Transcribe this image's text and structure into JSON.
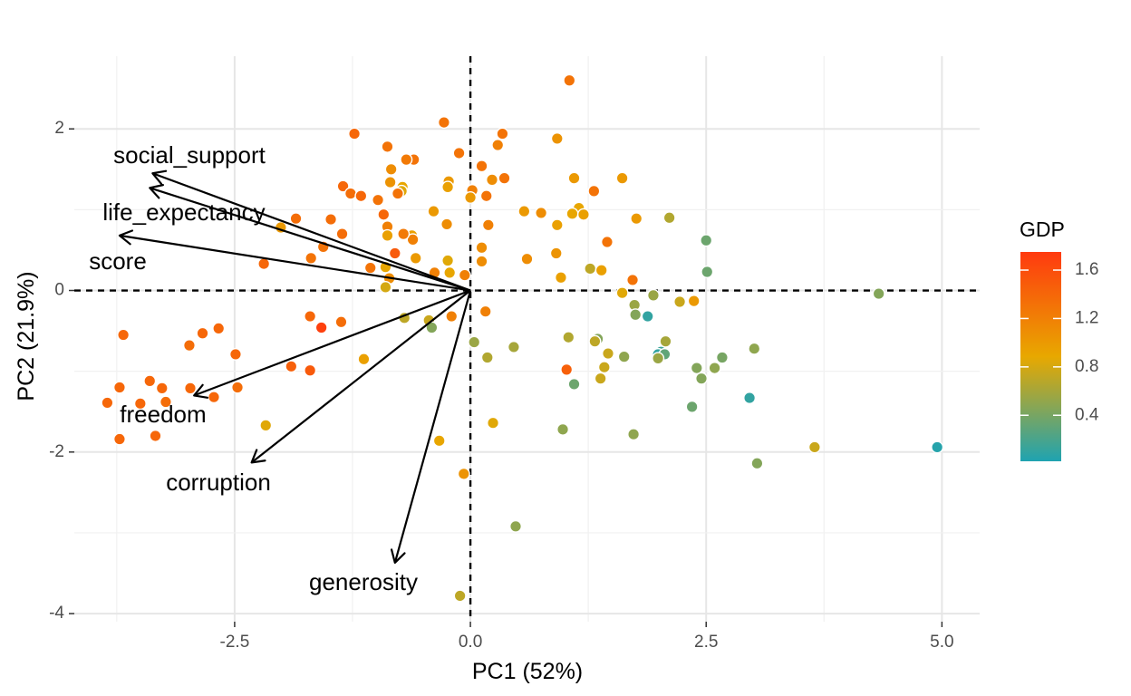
{
  "chart_data": {
    "type": "scatter",
    "subtype": "pca-biplot",
    "title": "",
    "xlabel": "PC1 (52%)",
    "ylabel": "PC2 (21.9%)",
    "xlim": [
      -4.2,
      5.4
    ],
    "ylim": [
      -4.1,
      2.9
    ],
    "x_ticks": [
      -2.5,
      0.0,
      2.5,
      5.0
    ],
    "x_tick_labels": [
      "-2.5",
      "0.0",
      "2.5",
      "5.0"
    ],
    "y_ticks": [
      -4,
      -2,
      0,
      2
    ],
    "y_tick_labels": [
      "-4",
      "-2",
      "0",
      "2"
    ],
    "grid": true,
    "reference_lines": {
      "x": 0,
      "y": 0,
      "style": "dashed"
    },
    "legend": {
      "title": "GDP",
      "placement": "right",
      "range": [
        0.02,
        1.75
      ],
      "breaks": [
        0.4,
        0.8,
        1.2,
        1.6
      ],
      "labels": [
        "0.4",
        "0.8",
        "1.2",
        "1.6"
      ],
      "colors": [
        "#1fa3b1",
        "#e8a800",
        "#ff3a0f"
      ]
    },
    "loadings": [
      {
        "name": "social_support",
        "x": -3.37,
        "y": 1.45
      },
      {
        "name": "life_expectancy",
        "x": -3.4,
        "y": 1.27
      },
      {
        "name": "score",
        "x": -3.72,
        "y": 0.68
      },
      {
        "name": "freedom",
        "x": -2.93,
        "y": -1.3
      },
      {
        "name": "corruption",
        "x": -2.32,
        "y": -2.13
      },
      {
        "name": "generosity",
        "x": -0.8,
        "y": -3.37
      }
    ],
    "points": [
      {
        "x": 1.05,
        "y": 2.6,
        "gdp": 1.3
      },
      {
        "x": -1.23,
        "y": 1.94,
        "gdp": 1.4
      },
      {
        "x": -0.28,
        "y": 2.08,
        "gdp": 1.3
      },
      {
        "x": 0.34,
        "y": 1.94,
        "gdp": 1.3
      },
      {
        "x": 0.92,
        "y": 1.88,
        "gdp": 1.05
      },
      {
        "x": -0.88,
        "y": 1.78,
        "gdp": 1.3
      },
      {
        "x": 0.29,
        "y": 1.8,
        "gdp": 1.2
      },
      {
        "x": -0.12,
        "y": 1.7,
        "gdp": 1.3
      },
      {
        "x": -0.6,
        "y": 1.62,
        "gdp": 1.3
      },
      {
        "x": -0.68,
        "y": 1.62,
        "gdp": 1.25
      },
      {
        "x": -0.84,
        "y": 1.5,
        "gdp": 1.1
      },
      {
        "x": 0.12,
        "y": 1.54,
        "gdp": 1.3
      },
      {
        "x": -0.85,
        "y": 1.34,
        "gdp": 1.05
      },
      {
        "x": -0.23,
        "y": 1.35,
        "gdp": 1.0
      },
      {
        "x": 0.23,
        "y": 1.37,
        "gdp": 1.1
      },
      {
        "x": 0.36,
        "y": 1.39,
        "gdp": 1.3
      },
      {
        "x": 1.1,
        "y": 1.39,
        "gdp": 1.0
      },
      {
        "x": 1.61,
        "y": 1.39,
        "gdp": 1.0
      },
      {
        "x": -1.35,
        "y": 1.29,
        "gdp": 1.4
      },
      {
        "x": -1.27,
        "y": 1.2,
        "gdp": 1.35
      },
      {
        "x": -1.16,
        "y": 1.17,
        "gdp": 1.4
      },
      {
        "x": -0.72,
        "y": 1.28,
        "gdp": 0.9
      },
      {
        "x": -0.73,
        "y": 1.23,
        "gdp": 0.85
      },
      {
        "x": -0.24,
        "y": 1.28,
        "gdp": 0.95
      },
      {
        "x": -0.77,
        "y": 1.2,
        "gdp": 1.3
      },
      {
        "x": -0.98,
        "y": 1.12,
        "gdp": 1.3
      },
      {
        "x": 0.02,
        "y": 1.24,
        "gdp": 1.2
      },
      {
        "x": 0.0,
        "y": 1.15,
        "gdp": 1.0
      },
      {
        "x": 0.17,
        "y": 1.17,
        "gdp": 1.3
      },
      {
        "x": 1.31,
        "y": 1.23,
        "gdp": 1.3
      },
      {
        "x": 1.15,
        "y": 1.02,
        "gdp": 0.9
      },
      {
        "x": 1.08,
        "y": 0.95,
        "gdp": 0.9
      },
      {
        "x": 1.2,
        "y": 0.94,
        "gdp": 0.95
      },
      {
        "x": 0.57,
        "y": 0.98,
        "gdp": 1.0
      },
      {
        "x": 0.75,
        "y": 0.96,
        "gdp": 1.1
      },
      {
        "x": 1.76,
        "y": 0.89,
        "gdp": 1.0
      },
      {
        "x": 2.11,
        "y": 0.9,
        "gdp": 0.65
      },
      {
        "x": -0.39,
        "y": 0.98,
        "gdp": 1.0
      },
      {
        "x": -0.92,
        "y": 0.94,
        "gdp": 1.4
      },
      {
        "x": -1.85,
        "y": 0.89,
        "gdp": 1.35
      },
      {
        "x": -1.48,
        "y": 0.88,
        "gdp": 1.35
      },
      {
        "x": -2.01,
        "y": 0.78,
        "gdp": 1.0
      },
      {
        "x": -0.25,
        "y": 0.82,
        "gdp": 1.1
      },
      {
        "x": -0.88,
        "y": 0.79,
        "gdp": 1.2
      },
      {
        "x": 0.19,
        "y": 0.81,
        "gdp": 1.2
      },
      {
        "x": 0.92,
        "y": 0.81,
        "gdp": 0.95
      },
      {
        "x": -1.36,
        "y": 0.7,
        "gdp": 1.35
      },
      {
        "x": -0.88,
        "y": 0.68,
        "gdp": 0.95
      },
      {
        "x": -0.62,
        "y": 0.68,
        "gdp": 0.95
      },
      {
        "x": -0.61,
        "y": 0.63,
        "gdp": 1.2
      },
      {
        "x": -0.71,
        "y": 0.7,
        "gdp": 1.25
      },
      {
        "x": 2.5,
        "y": 0.62,
        "gdp": 0.35
      },
      {
        "x": 1.45,
        "y": 0.6,
        "gdp": 1.3
      },
      {
        "x": -1.56,
        "y": 0.54,
        "gdp": 1.3
      },
      {
        "x": 0.12,
        "y": 0.53,
        "gdp": 1.1
      },
      {
        "x": -0.8,
        "y": 0.46,
        "gdp": 1.5
      },
      {
        "x": 0.91,
        "y": 0.46,
        "gdp": 1.05
      },
      {
        "x": -1.69,
        "y": 0.4,
        "gdp": 1.3
      },
      {
        "x": -0.58,
        "y": 0.4,
        "gdp": 1.0
      },
      {
        "x": 0.6,
        "y": 0.39,
        "gdp": 1.1
      },
      {
        "x": 0.12,
        "y": 0.36,
        "gdp": 1.1
      },
      {
        "x": -0.24,
        "y": 0.37,
        "gdp": 0.85
      },
      {
        "x": -2.19,
        "y": 0.33,
        "gdp": 1.4
      },
      {
        "x": -1.06,
        "y": 0.28,
        "gdp": 1.3
      },
      {
        "x": -0.9,
        "y": 0.29,
        "gdp": 0.9
      },
      {
        "x": -0.38,
        "y": 0.22,
        "gdp": 1.2
      },
      {
        "x": -0.22,
        "y": 0.22,
        "gdp": 0.9
      },
      {
        "x": -0.06,
        "y": 0.19,
        "gdp": 1.2
      },
      {
        "x": 1.27,
        "y": 0.27,
        "gdp": 0.7
      },
      {
        "x": 1.39,
        "y": 0.25,
        "gdp": 0.95
      },
      {
        "x": 0.96,
        "y": 0.16,
        "gdp": 0.95
      },
      {
        "x": 1.72,
        "y": 0.13,
        "gdp": 1.3
      },
      {
        "x": 2.51,
        "y": 0.23,
        "gdp": 0.35
      },
      {
        "x": -0.86,
        "y": 0.15,
        "gdp": 1.1
      },
      {
        "x": -0.9,
        "y": 0.04,
        "gdp": 0.8
      },
      {
        "x": 4.33,
        "y": -0.04,
        "gdp": 0.45
      },
      {
        "x": 1.61,
        "y": -0.03,
        "gdp": 0.85
      },
      {
        "x": 1.94,
        "y": -0.06,
        "gdp": 0.55
      },
      {
        "x": 1.74,
        "y": -0.18,
        "gdp": 0.55
      },
      {
        "x": 2.37,
        "y": -0.13,
        "gdp": 1.0
      },
      {
        "x": 2.22,
        "y": -0.14,
        "gdp": 0.75
      },
      {
        "x": 1.75,
        "y": -0.3,
        "gdp": 0.45
      },
      {
        "x": 1.88,
        "y": -0.32,
        "gdp": 0.1
      },
      {
        "x": -1.7,
        "y": -0.32,
        "gdp": 1.4
      },
      {
        "x": -1.37,
        "y": -0.39,
        "gdp": 1.35
      },
      {
        "x": -0.7,
        "y": -0.34,
        "gdp": 0.7
      },
      {
        "x": -0.44,
        "y": -0.37,
        "gdp": 0.75
      },
      {
        "x": -0.2,
        "y": -0.32,
        "gdp": 1.2
      },
      {
        "x": 0.16,
        "y": -0.26,
        "gdp": 1.2
      },
      {
        "x": -2.67,
        "y": -0.47,
        "gdp": 1.4
      },
      {
        "x": -2.84,
        "y": -0.53,
        "gdp": 1.4
      },
      {
        "x": -1.58,
        "y": -0.46,
        "gdp": 1.7
      },
      {
        "x": -0.41,
        "y": -0.46,
        "gdp": 0.45
      },
      {
        "x": -3.68,
        "y": -0.55,
        "gdp": 1.4
      },
      {
        "x": 1.04,
        "y": -0.58,
        "gdp": 0.65
      },
      {
        "x": 1.35,
        "y": -0.6,
        "gdp": 0.45
      },
      {
        "x": 1.32,
        "y": -0.63,
        "gdp": 0.7
      },
      {
        "x": 2.07,
        "y": -0.63,
        "gdp": 0.6
      },
      {
        "x": 0.04,
        "y": -0.64,
        "gdp": 0.55
      },
      {
        "x": -2.98,
        "y": -0.68,
        "gdp": 1.35
      },
      {
        "x": 0.46,
        "y": -0.7,
        "gdp": 0.6
      },
      {
        "x": 3.01,
        "y": -0.72,
        "gdp": 0.5
      },
      {
        "x": 2.02,
        "y": -0.76,
        "gdp": 0.15
      },
      {
        "x": 1.99,
        "y": -0.79,
        "gdp": 0.1
      },
      {
        "x": 2.06,
        "y": -0.79,
        "gdp": 0.3
      },
      {
        "x": -2.49,
        "y": -0.79,
        "gdp": 1.4
      },
      {
        "x": 1.63,
        "y": -0.82,
        "gdp": 0.5
      },
      {
        "x": 2.67,
        "y": -0.83,
        "gdp": 0.4
      },
      {
        "x": 1.46,
        "y": -0.78,
        "gdp": 0.75
      },
      {
        "x": 1.99,
        "y": -0.84,
        "gdp": 0.55
      },
      {
        "x": 0.18,
        "y": -0.83,
        "gdp": 0.65
      },
      {
        "x": -1.13,
        "y": -0.85,
        "gdp": 0.95
      },
      {
        "x": -1.9,
        "y": -0.94,
        "gdp": 1.45
      },
      {
        "x": -1.7,
        "y": -0.99,
        "gdp": 1.5
      },
      {
        "x": 1.42,
        "y": -0.95,
        "gdp": 0.75
      },
      {
        "x": 1.02,
        "y": -0.98,
        "gdp": 1.45
      },
      {
        "x": 2.4,
        "y": -0.96,
        "gdp": 0.45
      },
      {
        "x": 2.59,
        "y": -0.96,
        "gdp": 0.5
      },
      {
        "x": 1.38,
        "y": -1.09,
        "gdp": 0.75
      },
      {
        "x": 2.45,
        "y": -1.09,
        "gdp": 0.45
      },
      {
        "x": -3.4,
        "y": -1.12,
        "gdp": 1.4
      },
      {
        "x": -3.72,
        "y": -1.2,
        "gdp": 1.4
      },
      {
        "x": -3.27,
        "y": -1.21,
        "gdp": 1.4
      },
      {
        "x": -2.97,
        "y": -1.21,
        "gdp": 1.4
      },
      {
        "x": -2.47,
        "y": -1.2,
        "gdp": 1.35
      },
      {
        "x": 1.1,
        "y": -1.16,
        "gdp": 0.35
      },
      {
        "x": -3.85,
        "y": -1.39,
        "gdp": 1.4
      },
      {
        "x": -3.5,
        "y": -1.4,
        "gdp": 1.4
      },
      {
        "x": -3.23,
        "y": -1.38,
        "gdp": 1.35
      },
      {
        "x": -2.72,
        "y": -1.32,
        "gdp": 1.4
      },
      {
        "x": 2.96,
        "y": -1.33,
        "gdp": 0.1
      },
      {
        "x": 2.35,
        "y": -1.44,
        "gdp": 0.35
      },
      {
        "x": -3.72,
        "y": -1.84,
        "gdp": 1.4
      },
      {
        "x": -3.34,
        "y": -1.8,
        "gdp": 1.4
      },
      {
        "x": -2.17,
        "y": -1.67,
        "gdp": 0.85
      },
      {
        "x": 0.24,
        "y": -1.64,
        "gdp": 0.85
      },
      {
        "x": 0.98,
        "y": -1.72,
        "gdp": 0.5
      },
      {
        "x": 1.73,
        "y": -1.78,
        "gdp": 0.5
      },
      {
        "x": -0.33,
        "y": -1.86,
        "gdp": 0.9
      },
      {
        "x": 3.65,
        "y": -1.94,
        "gdp": 0.75
      },
      {
        "x": 4.95,
        "y": -1.94,
        "gdp": 0.05
      },
      {
        "x": 3.04,
        "y": -2.14,
        "gdp": 0.45
      },
      {
        "x": -0.07,
        "y": -2.27,
        "gdp": 1.05
      },
      {
        "x": 0.48,
        "y": -2.92,
        "gdp": 0.5
      },
      {
        "x": -0.11,
        "y": -3.78,
        "gdp": 0.7
      }
    ]
  }
}
